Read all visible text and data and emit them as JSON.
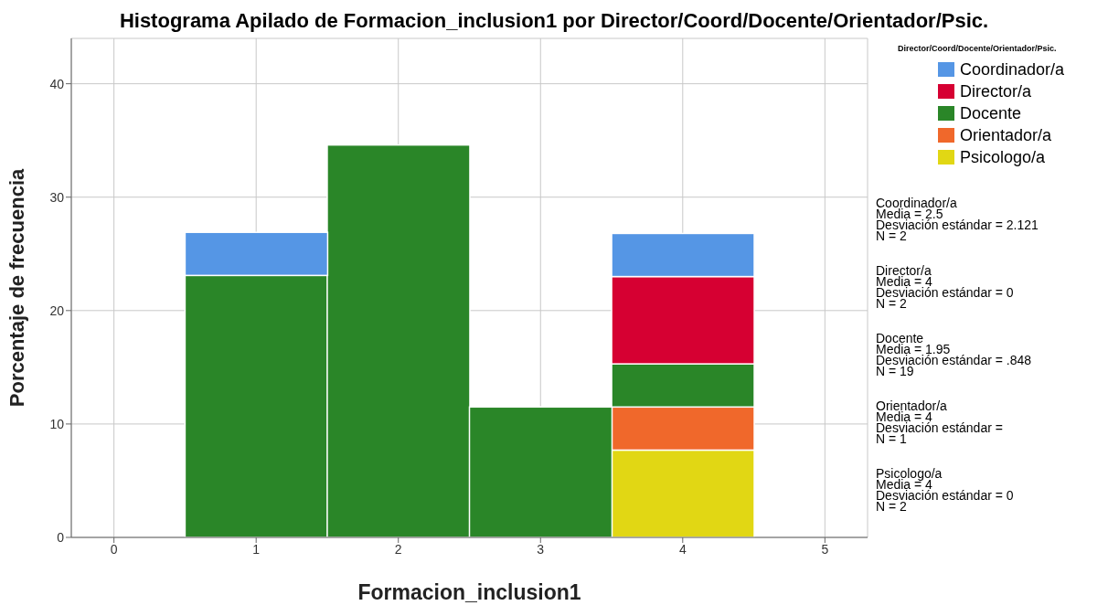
{
  "chart_data": {
    "type": "bar",
    "title": "Histograma Apilado de Formacion_inclusion1 por Director/Coord/Docente/Orientador/Psic.",
    "xlabel": "Formacion_inclusion1",
    "ylabel": "Porcentaje de frecuencia",
    "legend_title": "Director/Coord/Docente/Orientador/Psic.",
    "x": [
      1,
      2,
      3,
      4
    ],
    "stacked": true,
    "series": [
      {
        "name": "Psicologo/a",
        "color": "#e1d714",
        "values": [
          null,
          null,
          null,
          7.7
        ]
      },
      {
        "name": "Orientador/a",
        "color": "#f0682b",
        "values": [
          null,
          null,
          null,
          3.8
        ]
      },
      {
        "name": "Docente",
        "color": "#2a8628",
        "values": [
          23.1,
          34.6,
          11.5,
          3.8
        ]
      },
      {
        "name": "Director/a",
        "color": "#d60032",
        "values": [
          null,
          null,
          null,
          7.7
        ]
      },
      {
        "name": "Coordinador/a",
        "color": "#5596e5",
        "values": [
          3.8,
          null,
          null,
          3.8
        ]
      }
    ],
    "xlim": [
      -0.3,
      5.3
    ],
    "xticks": [
      0,
      1,
      2,
      3,
      4,
      5
    ],
    "ylim": [
      0,
      44
    ],
    "yticks": [
      0,
      10,
      20,
      30,
      40
    ],
    "grid": true,
    "legend": "top right",
    "annotations": [
      "Coordinador/a\nMedia = 2.5\nDesviación estándar = 2.121\nN = 2",
      "Director/a\nMedia = 4\nDesviación estándar = 0\nN = 2",
      "Docente\nMedia = 1.95\nDesviación estándar = .848\nN = 19",
      "Orientador/a\nMedia = 4\nDesviación estándar =\nN = 1",
      "Psicologo/a\nMedia = 4\nDesviación estándar = 0\nN = 2"
    ]
  }
}
